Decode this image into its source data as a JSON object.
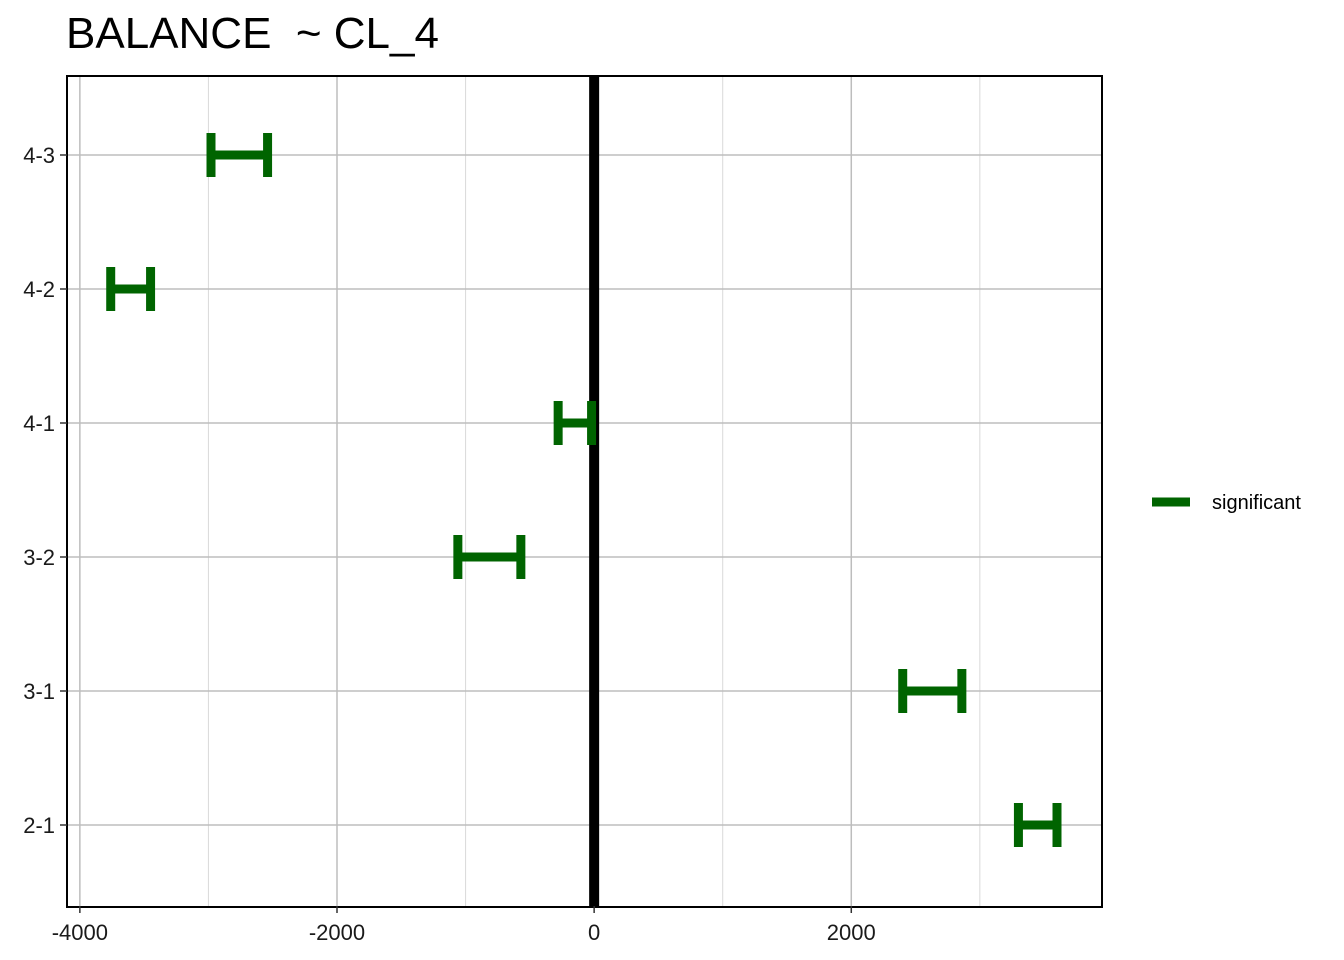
{
  "chart_data": {
    "type": "errorbar",
    "title": "BALANCE  ~ CL_4",
    "xlabel": "",
    "ylabel": "",
    "categories": [
      "4-3",
      "4-2",
      "4-1",
      "3-2",
      "3-1",
      "2-1"
    ],
    "series": [
      {
        "name": "significant",
        "color": "#006400",
        "intervals": [
          {
            "category": "4-3",
            "low": -2980,
            "high": -2540
          },
          {
            "category": "4-2",
            "low": -3760,
            "high": -3450
          },
          {
            "category": "4-1",
            "low": -280,
            "high": -20
          },
          {
            "category": "3-2",
            "low": -1060,
            "high": -570
          },
          {
            "category": "3-1",
            "low": 2400,
            "high": 2860
          },
          {
            "category": "2-1",
            "low": 3300,
            "high": 3600
          }
        ]
      }
    ],
    "xlim": [
      -4100,
      3950
    ],
    "xticks": [
      -4000,
      -2000,
      0,
      2000
    ],
    "xtick_labels": [
      "-4000",
      "-2000",
      "0",
      "2000"
    ],
    "minor_xticks": [
      -3000,
      -1000,
      1000,
      3000
    ],
    "reference_line_x": 0,
    "grid": true,
    "legend": {
      "position": "right",
      "entries": [
        "significant"
      ]
    }
  }
}
